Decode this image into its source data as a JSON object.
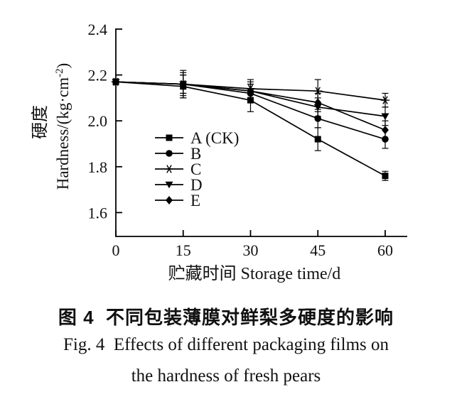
{
  "figure": {
    "caption_zh": "图 4  不同包装薄膜对鲜梨多硬度的影响",
    "caption_en_line1": "Fig. 4  Effects of different packaging films on",
    "caption_en_line2": "the hardness of fresh pears"
  },
  "chart_data": {
    "type": "line",
    "title": "",
    "xlabel": "贮藏时间 Storage time/d",
    "ylabel_zh": "硬度",
    "ylabel_en": "Hardness/(kg·cm⁻²)",
    "x": [
      0,
      15,
      30,
      45,
      60
    ],
    "xticklabels": [
      "0",
      "15",
      "30",
      "45",
      "60"
    ],
    "yticks": [
      1.6,
      1.8,
      2.0,
      2.2,
      2.4
    ],
    "yticklabels": [
      "1.6",
      "1.8",
      "2.0",
      "2.2",
      "2.4"
    ],
    "xlim": [
      0,
      65
    ],
    "ylim": [
      1.48,
      2.4
    ],
    "grid": false,
    "legend_position": "inside-lower-left",
    "colors": {
      "line": "#000000",
      "background": "#ffffff"
    },
    "series": [
      {
        "name": "A (CK)",
        "marker": "square",
        "values": [
          2.17,
          2.15,
          2.09,
          1.92,
          1.76
        ],
        "errors": [
          0,
          0.05,
          0.05,
          0.05,
          0.02
        ]
      },
      {
        "name": "B",
        "marker": "circle",
        "values": [
          2.17,
          2.16,
          2.12,
          2.01,
          1.92
        ],
        "errors": [
          0,
          0.04,
          0.04,
          0.04,
          0.04
        ]
      },
      {
        "name": "C",
        "marker": "asterisk",
        "values": [
          2.17,
          2.16,
          2.14,
          2.13,
          2.09
        ],
        "errors": [
          0,
          0.06,
          0.04,
          0.05,
          0.03
        ]
      },
      {
        "name": "D",
        "marker": "triangle-down",
        "values": [
          2.17,
          2.16,
          2.13,
          2.06,
          2.02
        ],
        "errors": [
          0,
          0.04,
          0.04,
          0.04,
          0.04
        ]
      },
      {
        "name": "E",
        "marker": "diamond",
        "values": [
          2.17,
          2.16,
          2.13,
          2.08,
          1.96
        ],
        "errors": [
          0,
          0.05,
          0.03,
          0.04,
          0.04
        ]
      }
    ]
  }
}
